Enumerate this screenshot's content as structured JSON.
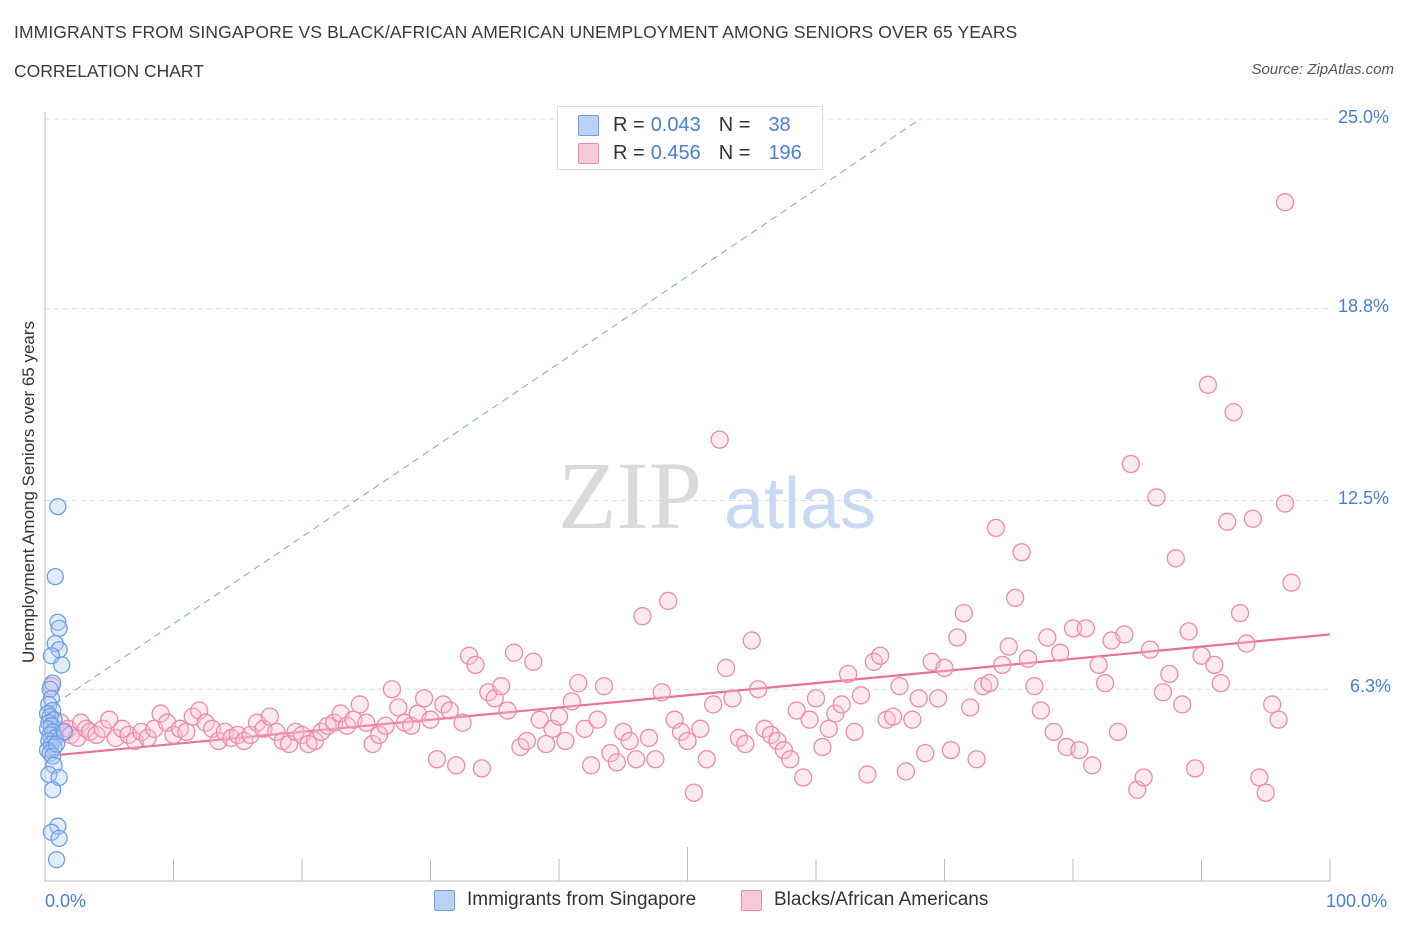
{
  "title": "IMMIGRANTS FROM SINGAPORE VS BLACK/AFRICAN AMERICAN UNEMPLOYMENT AMONG SENIORS OVER 65 YEARS",
  "subtitle": "CORRELATION CHART",
  "source": "Source: ZipAtlas.com",
  "watermark": {
    "zip": "ZIP",
    "atlas": "atlas"
  },
  "legend": {
    "r_label": "R =",
    "n_label": "N =",
    "rows": [
      {
        "r": "0.043",
        "n": "38",
        "color": "#a9c8f5",
        "border": "#6f9fe3"
      },
      {
        "r": "0.456",
        "n": "196",
        "color": "#f9c2d3",
        "border": "#ee8aaa"
      }
    ]
  },
  "chart_data": {
    "type": "scatter",
    "ylabel": "Unemployment Among Seniors over 65 years",
    "x_tick_labels": [
      "0.0%",
      "100.0%"
    ],
    "y_tick_labels": [
      "6.3%",
      "12.5%",
      "18.8%",
      "25.0%"
    ],
    "y_ticks": [
      6.3,
      12.5,
      18.8,
      25.0
    ],
    "xlim": [
      0,
      100
    ],
    "ylim": [
      0,
      25.0
    ],
    "colors": {
      "blue": "#6f9fe3",
      "blue_fill": "#a9c8f5",
      "pink": "#ee8aaa",
      "pink_fill": "#f9c2d3",
      "pink_line": "#e8709a",
      "blue_line": "#7aa6e0"
    },
    "series": [
      {
        "name": "Immigrants from Singapore",
        "color": "#6f9fe3",
        "points": [
          [
            1.0,
            12.3
          ],
          [
            0.8,
            10.0
          ],
          [
            1.0,
            8.5
          ],
          [
            1.1,
            8.3
          ],
          [
            0.8,
            7.8
          ],
          [
            1.1,
            7.6
          ],
          [
            0.5,
            7.4
          ],
          [
            1.3,
            7.1
          ],
          [
            0.6,
            6.5
          ],
          [
            0.4,
            6.3
          ],
          [
            0.5,
            6.0
          ],
          [
            0.3,
            5.8
          ],
          [
            0.6,
            5.6
          ],
          [
            0.2,
            5.5
          ],
          [
            0.4,
            5.4
          ],
          [
            0.7,
            5.3
          ],
          [
            0.3,
            5.2
          ],
          [
            0.5,
            5.1
          ],
          [
            0.2,
            5.0
          ],
          [
            0.6,
            4.9
          ],
          [
            0.4,
            4.8
          ],
          [
            0.8,
            4.7
          ],
          [
            0.3,
            4.6
          ],
          [
            0.5,
            4.5
          ],
          [
            0.7,
            4.4
          ],
          [
            0.2,
            4.3
          ],
          [
            0.4,
            4.2
          ],
          [
            0.6,
            4.1
          ],
          [
            0.9,
            4.5
          ],
          [
            0.7,
            3.8
          ],
          [
            0.3,
            3.5
          ],
          [
            1.1,
            3.4
          ],
          [
            0.6,
            3.0
          ],
          [
            1.0,
            1.8
          ],
          [
            0.5,
            1.6
          ],
          [
            1.1,
            1.4
          ],
          [
            0.9,
            0.7
          ],
          [
            1.5,
            4.9
          ]
        ]
      },
      {
        "name": "Blacks/African Americans",
        "color": "#ee8aaa",
        "points": [
          [
            0.5,
            6.4
          ],
          [
            0.8,
            5.0
          ],
          [
            1.2,
            5.2
          ],
          [
            1.5,
            4.9
          ],
          [
            1.8,
            5.0
          ],
          [
            2.0,
            4.8
          ],
          [
            2.5,
            4.7
          ],
          [
            2.8,
            5.2
          ],
          [
            3.2,
            5.0
          ],
          [
            3.5,
            4.9
          ],
          [
            4.0,
            4.8
          ],
          [
            4.5,
            5.0
          ],
          [
            5.0,
            5.3
          ],
          [
            5.5,
            4.7
          ],
          [
            6.0,
            5.0
          ],
          [
            6.5,
            4.8
          ],
          [
            7.0,
            4.6
          ],
          [
            7.5,
            4.9
          ],
          [
            8.0,
            4.7
          ],
          [
            8.5,
            5.0
          ],
          [
            9.0,
            5.5
          ],
          [
            9.5,
            5.2
          ],
          [
            10.0,
            4.8
          ],
          [
            10.5,
            5.0
          ],
          [
            11.0,
            4.9
          ],
          [
            11.5,
            5.4
          ],
          [
            12.0,
            5.6
          ],
          [
            12.5,
            5.2
          ],
          [
            13.0,
            5.0
          ],
          [
            13.5,
            4.6
          ],
          [
            14.0,
            4.9
          ],
          [
            14.5,
            4.7
          ],
          [
            15.0,
            4.8
          ],
          [
            15.5,
            4.6
          ],
          [
            16.0,
            4.8
          ],
          [
            16.5,
            5.2
          ],
          [
            17.0,
            5.0
          ],
          [
            17.5,
            5.4
          ],
          [
            18.0,
            4.9
          ],
          [
            18.5,
            4.6
          ],
          [
            19.0,
            4.5
          ],
          [
            19.5,
            4.9
          ],
          [
            20.0,
            4.8
          ],
          [
            20.5,
            4.5
          ],
          [
            21.0,
            4.6
          ],
          [
            21.5,
            4.9
          ],
          [
            22.0,
            5.1
          ],
          [
            22.5,
            5.2
          ],
          [
            23.0,
            5.5
          ],
          [
            23.5,
            5.1
          ],
          [
            24.0,
            5.3
          ],
          [
            24.5,
            5.8
          ],
          [
            25.0,
            5.2
          ],
          [
            25.5,
            4.5
          ],
          [
            26.0,
            4.8
          ],
          [
            26.5,
            5.1
          ],
          [
            27.0,
            6.3
          ],
          [
            27.5,
            5.7
          ],
          [
            28.0,
            5.2
          ],
          [
            28.5,
            5.1
          ],
          [
            29.0,
            5.5
          ],
          [
            29.5,
            6.0
          ],
          [
            30.0,
            5.3
          ],
          [
            30.5,
            4.0
          ],
          [
            31.0,
            5.8
          ],
          [
            31.5,
            5.6
          ],
          [
            32.0,
            3.8
          ],
          [
            32.5,
            5.2
          ],
          [
            33.0,
            7.4
          ],
          [
            33.5,
            7.1
          ],
          [
            34.0,
            3.7
          ],
          [
            34.5,
            6.2
          ],
          [
            35.0,
            6.0
          ],
          [
            35.5,
            6.4
          ],
          [
            36.0,
            5.6
          ],
          [
            36.5,
            7.5
          ],
          [
            37.0,
            4.4
          ],
          [
            37.5,
            4.6
          ],
          [
            38.0,
            7.2
          ],
          [
            38.5,
            5.3
          ],
          [
            39.0,
            4.5
          ],
          [
            39.5,
            5.0
          ],
          [
            40.0,
            5.4
          ],
          [
            40.5,
            4.6
          ],
          [
            41.0,
            5.9
          ],
          [
            41.5,
            6.5
          ],
          [
            42.0,
            5.0
          ],
          [
            42.5,
            3.8
          ],
          [
            43.0,
            5.3
          ],
          [
            43.5,
            6.4
          ],
          [
            44.0,
            4.2
          ],
          [
            44.5,
            3.9
          ],
          [
            45.0,
            4.9
          ],
          [
            45.5,
            4.6
          ],
          [
            46.0,
            4.0
          ],
          [
            46.5,
            8.7
          ],
          [
            47.0,
            4.7
          ],
          [
            47.5,
            4.0
          ],
          [
            48.0,
            6.2
          ],
          [
            48.5,
            9.2
          ],
          [
            49.0,
            5.3
          ],
          [
            49.5,
            4.9
          ],
          [
            50.0,
            4.6
          ],
          [
            50.5,
            2.9
          ],
          [
            51.0,
            5.0
          ],
          [
            51.5,
            4.0
          ],
          [
            52.0,
            5.8
          ],
          [
            52.5,
            14.5
          ],
          [
            53.0,
            7.0
          ],
          [
            53.5,
            6.0
          ],
          [
            54.0,
            4.7
          ],
          [
            54.5,
            4.5
          ],
          [
            55.0,
            7.9
          ],
          [
            55.5,
            6.3
          ],
          [
            56.0,
            5.0
          ],
          [
            56.5,
            4.8
          ],
          [
            57.0,
            4.6
          ],
          [
            57.5,
            4.3
          ],
          [
            58.0,
            4.0
          ],
          [
            58.5,
            5.6
          ],
          [
            59.0,
            3.4
          ],
          [
            59.5,
            5.3
          ],
          [
            60.0,
            6.0
          ],
          [
            60.5,
            4.4
          ],
          [
            61.0,
            5.0
          ],
          [
            61.5,
            5.5
          ],
          [
            62.0,
            5.8
          ],
          [
            62.5,
            6.8
          ],
          [
            63.0,
            4.9
          ],
          [
            63.5,
            6.1
          ],
          [
            64.0,
            3.5
          ],
          [
            64.5,
            7.2
          ],
          [
            65.0,
            7.4
          ],
          [
            65.5,
            5.3
          ],
          [
            66.0,
            5.4
          ],
          [
            66.5,
            6.4
          ],
          [
            67.0,
            3.6
          ],
          [
            67.5,
            5.3
          ],
          [
            68.0,
            6.0
          ],
          [
            68.5,
            4.2
          ],
          [
            69.0,
            7.2
          ],
          [
            69.5,
            6.0
          ],
          [
            70.0,
            7.0
          ],
          [
            70.5,
            4.3
          ],
          [
            71.0,
            8.0
          ],
          [
            71.5,
            8.8
          ],
          [
            72.0,
            5.7
          ],
          [
            72.5,
            4.0
          ],
          [
            73.0,
            6.4
          ],
          [
            73.5,
            6.5
          ],
          [
            74.0,
            11.6
          ],
          [
            74.5,
            7.1
          ],
          [
            75.0,
            7.7
          ],
          [
            75.5,
            9.3
          ],
          [
            76.0,
            10.8
          ],
          [
            76.5,
            7.3
          ],
          [
            77.0,
            6.4
          ],
          [
            77.5,
            5.6
          ],
          [
            78.0,
            8.0
          ],
          [
            78.5,
            4.9
          ],
          [
            79.0,
            7.5
          ],
          [
            79.5,
            4.4
          ],
          [
            80.0,
            8.3
          ],
          [
            80.5,
            4.3
          ],
          [
            81.0,
            8.3
          ],
          [
            81.5,
            3.8
          ],
          [
            82.0,
            7.1
          ],
          [
            82.5,
            6.5
          ],
          [
            83.0,
            7.9
          ],
          [
            83.5,
            4.9
          ],
          [
            84.0,
            8.1
          ],
          [
            84.5,
            13.7
          ],
          [
            85.0,
            3.0
          ],
          [
            85.5,
            3.4
          ],
          [
            86.0,
            7.6
          ],
          [
            86.5,
            12.6
          ],
          [
            87.0,
            6.2
          ],
          [
            87.5,
            6.8
          ],
          [
            88.0,
            10.6
          ],
          [
            88.5,
            5.8
          ],
          [
            89.0,
            8.2
          ],
          [
            89.5,
            3.7
          ],
          [
            90.0,
            7.4
          ],
          [
            90.5,
            16.3
          ],
          [
            91.0,
            7.1
          ],
          [
            91.5,
            6.5
          ],
          [
            92.0,
            11.8
          ],
          [
            92.5,
            15.4
          ],
          [
            93.0,
            8.8
          ],
          [
            93.5,
            7.8
          ],
          [
            94.0,
            11.9
          ],
          [
            94.5,
            3.4
          ],
          [
            95.0,
            2.9
          ],
          [
            95.5,
            5.8
          ],
          [
            96.0,
            5.3
          ],
          [
            96.5,
            12.4
          ],
          [
            97.0,
            9.8
          ],
          [
            96.5,
            22.3
          ]
        ]
      }
    ],
    "trend_lines": [
      {
        "series": "Blacks/African Americans",
        "x": [
          0,
          100
        ],
        "y": [
          4.1,
          8.1
        ]
      },
      {
        "series": "Immigrants from Singapore",
        "x": [
          0,
          68
        ],
        "y": [
          5.6,
          25.0
        ]
      }
    ]
  }
}
